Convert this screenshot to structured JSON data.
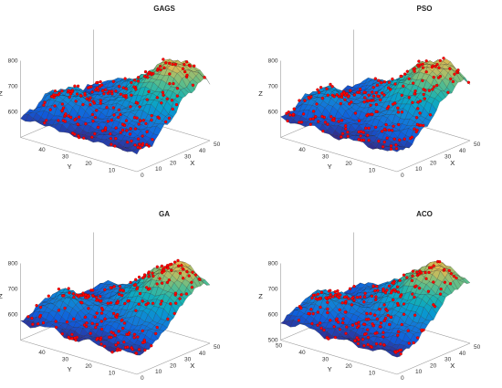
{
  "figure": {
    "layout": "2x2"
  },
  "chart_data": [
    {
      "type": "surface",
      "title": "GAGS",
      "xlabel": "X",
      "ylabel": "Y",
      "zlabel": "Z",
      "xlim": [
        0,
        50
      ],
      "ylim": [
        0,
        50
      ],
      "zlim": [
        500,
        800
      ],
      "xticks": [
        "0",
        "10",
        "20",
        "30",
        "40",
        "50"
      ],
      "yticks": [
        "10",
        "20",
        "30",
        "40"
      ],
      "zticks": [
        "600",
        "700",
        "800"
      ],
      "colormap": "parula",
      "marker_color": "#ff0000",
      "surface_z_range": [
        560,
        800
      ],
      "ridge": {
        "x": 45,
        "y": 10,
        "z": 800
      },
      "scatter_points_description": "red path points lying on the surface"
    },
    {
      "type": "surface",
      "title": "PSO",
      "xlabel": "X",
      "ylabel": "Y",
      "zlabel": "Z",
      "xlim": [
        0,
        50
      ],
      "ylim": [
        0,
        50
      ],
      "zlim": [
        500,
        800
      ],
      "xticks": [
        "0",
        "10",
        "20",
        "30",
        "40",
        "50"
      ],
      "yticks": [
        "10",
        "20",
        "30",
        "40"
      ],
      "zticks": [
        "600",
        "700",
        "800"
      ],
      "colormap": "parula",
      "marker_color": "#ff0000",
      "surface_z_range": [
        560,
        800
      ],
      "ridge": {
        "x": 45,
        "y": 10,
        "z": 800
      }
    },
    {
      "type": "surface",
      "title": "GA",
      "xlabel": "X",
      "ylabel": "Y",
      "zlabel": "Z",
      "xlim": [
        0,
        50
      ],
      "ylim": [
        0,
        50
      ],
      "zlim": [
        500,
        800
      ],
      "xticks": [
        "0",
        "10",
        "20",
        "30",
        "40",
        "50"
      ],
      "yticks": [
        "10",
        "20",
        "30",
        "40"
      ],
      "zticks": [
        "600",
        "700",
        "800"
      ],
      "colormap": "parula",
      "marker_color": "#ff0000",
      "surface_z_range": [
        560,
        800
      ],
      "ridge": {
        "x": 45,
        "y": 10,
        "z": 800
      }
    },
    {
      "type": "surface",
      "title": "ACO",
      "xlabel": "X",
      "ylabel": "Y",
      "zlabel": "Z",
      "xlim": [
        0,
        50
      ],
      "ylim": [
        0,
        50
      ],
      "zlim": [
        500,
        800
      ],
      "xticks": [
        "0",
        "10",
        "20",
        "30",
        "40",
        "50"
      ],
      "yticks": [
        "10",
        "20",
        "30",
        "40",
        "50"
      ],
      "zticks": [
        "500",
        "600",
        "700",
        "800"
      ],
      "colormap": "parula",
      "marker_color": "#ff0000",
      "surface_z_range": [
        560,
        800
      ],
      "ridge": {
        "x": 45,
        "y": 10,
        "z": 800
      }
    }
  ]
}
